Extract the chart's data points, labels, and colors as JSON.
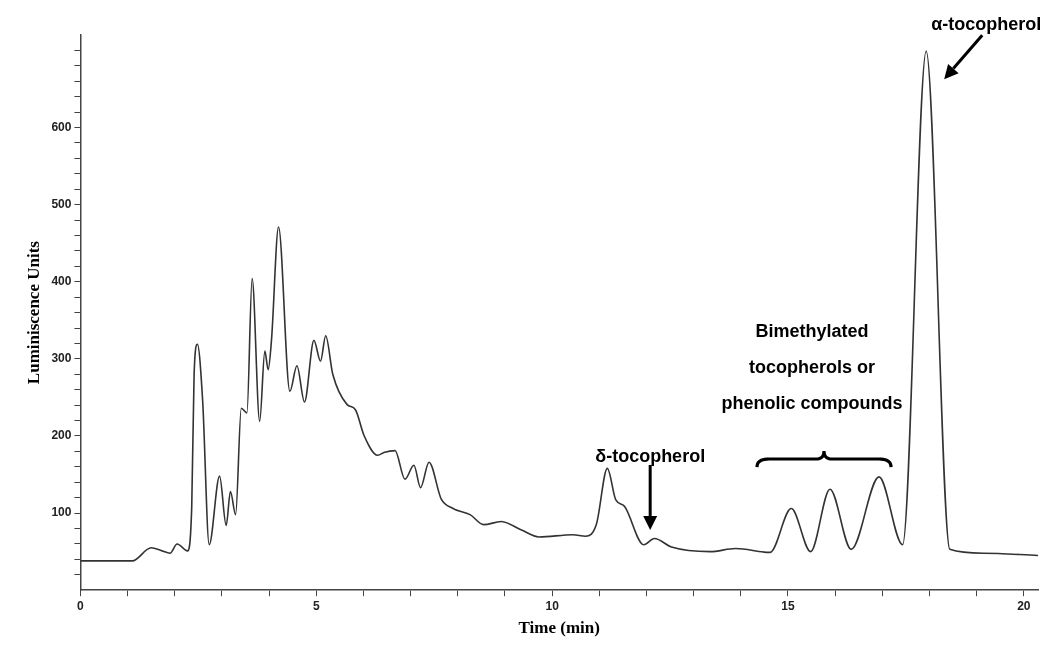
{
  "chart_data": {
    "type": "line",
    "xlabel": "Time (min)",
    "ylabel": "Luminiscence Units",
    "xlim": [
      0,
      20.3
    ],
    "ylim": [
      0,
      720
    ],
    "xticks": [
      0,
      {
        "value": 1,
        "label": null
      },
      {
        "value": 2,
        "label": null
      },
      {
        "value": 3,
        "label": null
      },
      {
        "value": 4,
        "label": null
      },
      5,
      {
        "value": 6,
        "label": null
      },
      {
        "value": 7,
        "label": null
      },
      {
        "value": 8,
        "label": null
      },
      {
        "value": 9,
        "label": null
      },
      10,
      {
        "value": 11,
        "label": null
      },
      {
        "value": 12,
        "label": null
      },
      {
        "value": 13,
        "label": null
      },
      {
        "value": 14,
        "label": null
      },
      15,
      {
        "value": 16,
        "label": null
      },
      {
        "value": 17,
        "label": null
      },
      {
        "value": 18,
        "label": null
      },
      {
        "value": 19,
        "label": null
      },
      20
    ],
    "yticks": [
      {
        "value": 20,
        "label": null
      },
      {
        "value": 40,
        "label": null
      },
      {
        "value": 60,
        "label": null
      },
      {
        "value": 80,
        "label": null
      },
      100,
      {
        "value": 120,
        "label": null
      },
      {
        "value": 140,
        "label": null
      },
      {
        "value": 160,
        "label": null
      },
      {
        "value": 180,
        "label": null
      },
      200,
      {
        "value": 220,
        "label": null
      },
      {
        "value": 240,
        "label": null
      },
      {
        "value": 260,
        "label": null
      },
      {
        "value": 280,
        "label": null
      },
      300,
      {
        "value": 320,
        "label": null
      },
      {
        "value": 340,
        "label": null
      },
      {
        "value": 360,
        "label": null
      },
      {
        "value": 380,
        "label": null
      },
      400,
      {
        "value": 420,
        "label": null
      },
      {
        "value": 440,
        "label": null
      },
      {
        "value": 460,
        "label": null
      },
      {
        "value": 480,
        "label": null
      },
      500,
      {
        "value": 520,
        "label": null
      },
      {
        "value": 540,
        "label": null
      },
      {
        "value": 560,
        "label": null
      },
      {
        "value": 580,
        "label": null
      },
      600,
      {
        "value": 620,
        "label": null
      },
      {
        "value": 640,
        "label": null
      },
      {
        "value": 660,
        "label": null
      },
      {
        "value": 680,
        "label": null
      },
      {
        "value": 700,
        "label": null
      }
    ],
    "grid": false,
    "legend": false,
    "marker": "none",
    "line_style": "solid",
    "series": [
      {
        "color": "#333333",
        "x": [
          0,
          1.1,
          1.5,
          1.73,
          1.9,
          2.05,
          2.27,
          2.36,
          2.41,
          2.48,
          2.59,
          2.73,
          2.95,
          3.09,
          3.18,
          3.29,
          3.41,
          3.53,
          3.64,
          3.8,
          3.91,
          3.98,
          4.05,
          4.2,
          4.44,
          4.59,
          4.75,
          4.95,
          5.09,
          5.2,
          5.35,
          5.65,
          5.83,
          6.01,
          6.3,
          6.45,
          6.67,
          6.88,
          7.07,
          7.21,
          7.39,
          7.65,
          7.9,
          8.26,
          8.55,
          8.92,
          9.35,
          9.72,
          10.44,
          10.71,
          10.94,
          11.17,
          11.35,
          11.53,
          11.94,
          12.17,
          12.53,
          13.35,
          13.89,
          14.62,
          15.07,
          15.48,
          15.89,
          16.34,
          16.93,
          17.43,
          17.93,
          18.43,
          19.15,
          20.3
        ],
        "values": [
          38,
          38,
          55,
          51,
          48,
          60,
          51,
          109,
          280,
          319,
          247,
          59,
          148,
          84,
          128,
          98,
          236,
          230,
          404,
          219,
          310,
          286,
          324,
          471,
          258,
          291,
          244,
          324,
          297,
          330,
          280,
          241,
          234,
          201,
          175,
          179,
          181,
          144,
          162,
          133,
          166,
          118,
          106,
          98,
          85,
          89,
          78,
          69,
          72,
          70,
          86,
          158,
          117,
          109,
          59,
          67,
          56,
          50,
          54,
          49,
          106,
          50,
          131,
          53,
          147,
          59,
          699,
          53,
          48,
          45
        ]
      }
    ],
    "annotations": [
      "δ-tocopherol",
      "Bimethylated tocopherols or phenolic compounds",
      {
        "text": "α-tocopherol",
        "x": 17.93,
        "y": 699
      }
    ]
  }
}
